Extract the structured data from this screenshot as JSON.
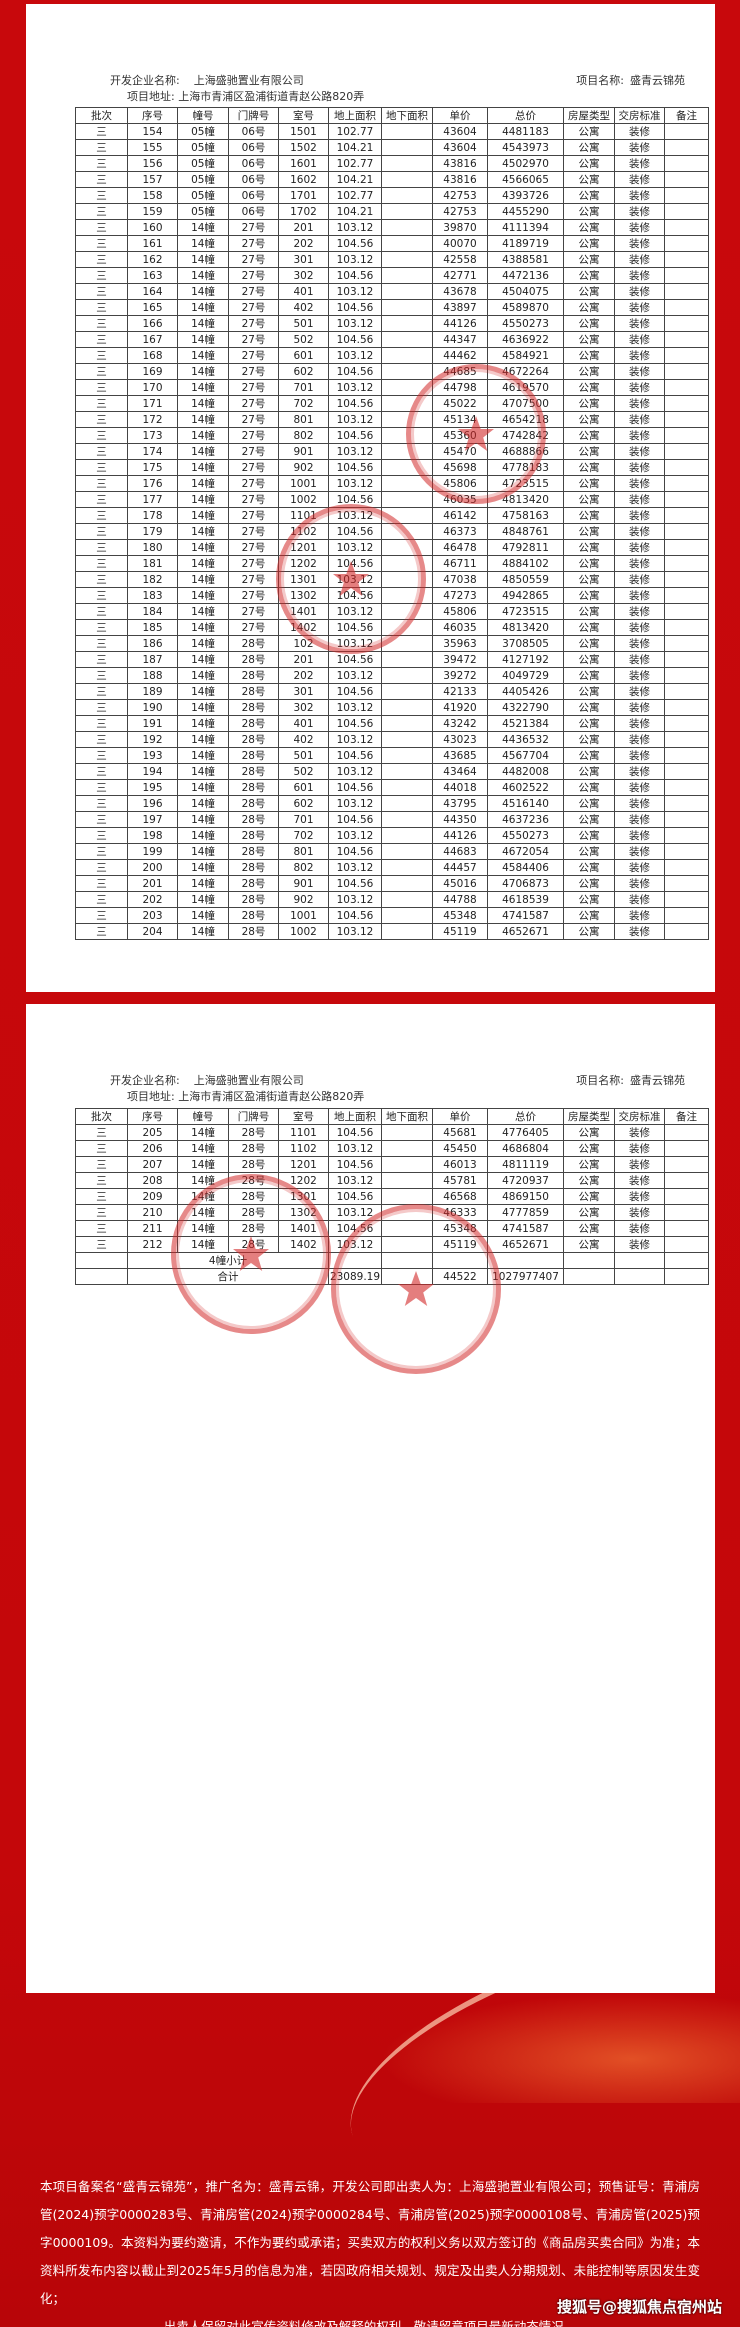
{
  "header": {
    "developer_label": "开发企业名称:",
    "developer_name": "上海盛驰置业有限公司",
    "project_label": "项目名称:",
    "project_name": "盛青云锦苑",
    "address": "项目地址: 上海市青浦区盈浦街道青赵公路820弄"
  },
  "columns": [
    "批次",
    "序号",
    "幢号",
    "门牌号",
    "室号",
    "地上面积",
    "地下面积",
    "单价",
    "总价",
    "房屋类型",
    "交房标准",
    "备注"
  ],
  "table1_rows": [
    [
      "三",
      "154",
      "05幢",
      "06号",
      "1501",
      "102.77",
      "",
      "43604",
      "4481183",
      "公寓",
      "装修",
      ""
    ],
    [
      "三",
      "155",
      "05幢",
      "06号",
      "1502",
      "104.21",
      "",
      "43604",
      "4543973",
      "公寓",
      "装修",
      ""
    ],
    [
      "三",
      "156",
      "05幢",
      "06号",
      "1601",
      "102.77",
      "",
      "43816",
      "4502970",
      "公寓",
      "装修",
      ""
    ],
    [
      "三",
      "157",
      "05幢",
      "06号",
      "1602",
      "104.21",
      "",
      "43816",
      "4566065",
      "公寓",
      "装修",
      ""
    ],
    [
      "三",
      "158",
      "05幢",
      "06号",
      "1701",
      "102.77",
      "",
      "42753",
      "4393726",
      "公寓",
      "装修",
      ""
    ],
    [
      "三",
      "159",
      "05幢",
      "06号",
      "1702",
      "104.21",
      "",
      "42753",
      "4455290",
      "公寓",
      "装修",
      ""
    ],
    [
      "三",
      "160",
      "14幢",
      "27号",
      "201",
      "103.12",
      "",
      "39870",
      "4111394",
      "公寓",
      "装修",
      ""
    ],
    [
      "三",
      "161",
      "14幢",
      "27号",
      "202",
      "104.56",
      "",
      "40070",
      "4189719",
      "公寓",
      "装修",
      ""
    ],
    [
      "三",
      "162",
      "14幢",
      "27号",
      "301",
      "103.12",
      "",
      "42558",
      "4388581",
      "公寓",
      "装修",
      ""
    ],
    [
      "三",
      "163",
      "14幢",
      "27号",
      "302",
      "104.56",
      "",
      "42771",
      "4472136",
      "公寓",
      "装修",
      ""
    ],
    [
      "三",
      "164",
      "14幢",
      "27号",
      "401",
      "103.12",
      "",
      "43678",
      "4504075",
      "公寓",
      "装修",
      ""
    ],
    [
      "三",
      "165",
      "14幢",
      "27号",
      "402",
      "104.56",
      "",
      "43897",
      "4589870",
      "公寓",
      "装修",
      ""
    ],
    [
      "三",
      "166",
      "14幢",
      "27号",
      "501",
      "103.12",
      "",
      "44126",
      "4550273",
      "公寓",
      "装修",
      ""
    ],
    [
      "三",
      "167",
      "14幢",
      "27号",
      "502",
      "104.56",
      "",
      "44347",
      "4636922",
      "公寓",
      "装修",
      ""
    ],
    [
      "三",
      "168",
      "14幢",
      "27号",
      "601",
      "103.12",
      "",
      "44462",
      "4584921",
      "公寓",
      "装修",
      ""
    ],
    [
      "三",
      "169",
      "14幢",
      "27号",
      "602",
      "104.56",
      "",
      "44685",
      "4672264",
      "公寓",
      "装修",
      ""
    ],
    [
      "三",
      "170",
      "14幢",
      "27号",
      "701",
      "103.12",
      "",
      "44798",
      "4619570",
      "公寓",
      "装修",
      ""
    ],
    [
      "三",
      "171",
      "14幢",
      "27号",
      "702",
      "104.56",
      "",
      "45022",
      "4707500",
      "公寓",
      "装修",
      ""
    ],
    [
      "三",
      "172",
      "14幢",
      "27号",
      "801",
      "103.12",
      "",
      "45134",
      "4654218",
      "公寓",
      "装修",
      ""
    ],
    [
      "三",
      "173",
      "14幢",
      "27号",
      "802",
      "104.56",
      "",
      "45360",
      "4742842",
      "公寓",
      "装修",
      ""
    ],
    [
      "三",
      "174",
      "14幢",
      "27号",
      "901",
      "103.12",
      "",
      "45470",
      "4688866",
      "公寓",
      "装修",
      ""
    ],
    [
      "三",
      "175",
      "14幢",
      "27号",
      "902",
      "104.56",
      "",
      "45698",
      "4778183",
      "公寓",
      "装修",
      ""
    ],
    [
      "三",
      "176",
      "14幢",
      "27号",
      "1001",
      "103.12",
      "",
      "45806",
      "4723515",
      "公寓",
      "装修",
      ""
    ],
    [
      "三",
      "177",
      "14幢",
      "27号",
      "1002",
      "104.56",
      "",
      "46035",
      "4813420",
      "公寓",
      "装修",
      ""
    ],
    [
      "三",
      "178",
      "14幢",
      "27号",
      "1101",
      "103.12",
      "",
      "46142",
      "4758163",
      "公寓",
      "装修",
      ""
    ],
    [
      "三",
      "179",
      "14幢",
      "27号",
      "1102",
      "104.56",
      "",
      "46373",
      "4848761",
      "公寓",
      "装修",
      ""
    ],
    [
      "三",
      "180",
      "14幢",
      "27号",
      "1201",
      "103.12",
      "",
      "46478",
      "4792811",
      "公寓",
      "装修",
      ""
    ],
    [
      "三",
      "181",
      "14幢",
      "27号",
      "1202",
      "104.56",
      "",
      "46711",
      "4884102",
      "公寓",
      "装修",
      ""
    ],
    [
      "三",
      "182",
      "14幢",
      "27号",
      "1301",
      "103.12",
      "",
      "47038",
      "4850559",
      "公寓",
      "装修",
      ""
    ],
    [
      "三",
      "183",
      "14幢",
      "27号",
      "1302",
      "104.56",
      "",
      "47273",
      "4942865",
      "公寓",
      "装修",
      ""
    ],
    [
      "三",
      "184",
      "14幢",
      "27号",
      "1401",
      "103.12",
      "",
      "45806",
      "4723515",
      "公寓",
      "装修",
      ""
    ],
    [
      "三",
      "185",
      "14幢",
      "27号",
      "1402",
      "104.56",
      "",
      "46035",
      "4813420",
      "公寓",
      "装修",
      ""
    ],
    [
      "三",
      "186",
      "14幢",
      "28号",
      "102",
      "103.12",
      "",
      "35963",
      "3708505",
      "公寓",
      "装修",
      ""
    ],
    [
      "三",
      "187",
      "14幢",
      "28号",
      "201",
      "104.56",
      "",
      "39472",
      "4127192",
      "公寓",
      "装修",
      ""
    ],
    [
      "三",
      "188",
      "14幢",
      "28号",
      "202",
      "103.12",
      "",
      "39272",
      "4049729",
      "公寓",
      "装修",
      ""
    ],
    [
      "三",
      "189",
      "14幢",
      "28号",
      "301",
      "104.56",
      "",
      "42133",
      "4405426",
      "公寓",
      "装修",
      ""
    ],
    [
      "三",
      "190",
      "14幢",
      "28号",
      "302",
      "103.12",
      "",
      "41920",
      "4322790",
      "公寓",
      "装修",
      ""
    ],
    [
      "三",
      "191",
      "14幢",
      "28号",
      "401",
      "104.56",
      "",
      "43242",
      "4521384",
      "公寓",
      "装修",
      ""
    ],
    [
      "三",
      "192",
      "14幢",
      "28号",
      "402",
      "103.12",
      "",
      "43023",
      "4436532",
      "公寓",
      "装修",
      ""
    ],
    [
      "三",
      "193",
      "14幢",
      "28号",
      "501",
      "104.56",
      "",
      "43685",
      "4567704",
      "公寓",
      "装修",
      ""
    ],
    [
      "三",
      "194",
      "14幢",
      "28号",
      "502",
      "103.12",
      "",
      "43464",
      "4482008",
      "公寓",
      "装修",
      ""
    ],
    [
      "三",
      "195",
      "14幢",
      "28号",
      "601",
      "104.56",
      "",
      "44018",
      "4602522",
      "公寓",
      "装修",
      ""
    ],
    [
      "三",
      "196",
      "14幢",
      "28号",
      "602",
      "103.12",
      "",
      "43795",
      "4516140",
      "公寓",
      "装修",
      ""
    ],
    [
      "三",
      "197",
      "14幢",
      "28号",
      "701",
      "104.56",
      "",
      "44350",
      "4637236",
      "公寓",
      "装修",
      ""
    ],
    [
      "三",
      "198",
      "14幢",
      "28号",
      "702",
      "103.12",
      "",
      "44126",
      "4550273",
      "公寓",
      "装修",
      ""
    ],
    [
      "三",
      "199",
      "14幢",
      "28号",
      "801",
      "104.56",
      "",
      "44683",
      "4672054",
      "公寓",
      "装修",
      ""
    ],
    [
      "三",
      "200",
      "14幢",
      "28号",
      "802",
      "103.12",
      "",
      "44457",
      "4584406",
      "公寓",
      "装修",
      ""
    ],
    [
      "三",
      "201",
      "14幢",
      "28号",
      "901",
      "104.56",
      "",
      "45016",
      "4706873",
      "公寓",
      "装修",
      ""
    ],
    [
      "三",
      "202",
      "14幢",
      "28号",
      "902",
      "103.12",
      "",
      "44788",
      "4618539",
      "公寓",
      "装修",
      ""
    ],
    [
      "三",
      "203",
      "14幢",
      "28号",
      "1001",
      "104.56",
      "",
      "45348",
      "4741587",
      "公寓",
      "装修",
      ""
    ],
    [
      "三",
      "204",
      "14幢",
      "28号",
      "1002",
      "103.12",
      "",
      "45119",
      "4652671",
      "公寓",
      "装修",
      ""
    ]
  ],
  "table2_rows": [
    [
      "三",
      "205",
      "14幢",
      "28号",
      "1101",
      "104.56",
      "",
      "45681",
      "4776405",
      "公寓",
      "装修",
      ""
    ],
    [
      "三",
      "206",
      "14幢",
      "28号",
      "1102",
      "103.12",
      "",
      "45450",
      "4686804",
      "公寓",
      "装修",
      ""
    ],
    [
      "三",
      "207",
      "14幢",
      "28号",
      "1201",
      "104.56",
      "",
      "46013",
      "4811119",
      "公寓",
      "装修",
      ""
    ],
    [
      "三",
      "208",
      "14幢",
      "28号",
      "1202",
      "103.12",
      "",
      "45781",
      "4720937",
      "公寓",
      "装修",
      ""
    ],
    [
      "三",
      "209",
      "14幢",
      "28号",
      "1301",
      "104.56",
      "",
      "46568",
      "4869150",
      "公寓",
      "装修",
      ""
    ],
    [
      "三",
      "210",
      "14幢",
      "28号",
      "1302",
      "103.12",
      "",
      "46333",
      "4777859",
      "公寓",
      "装修",
      ""
    ],
    [
      "三",
      "211",
      "14幢",
      "28号",
      "1401",
      "104.56",
      "",
      "45348",
      "4741587",
      "公寓",
      "装修",
      ""
    ],
    [
      "三",
      "212",
      "14幢",
      "28号",
      "1402",
      "103.12",
      "",
      "45119",
      "4652671",
      "公寓",
      "装修",
      ""
    ]
  ],
  "subtotal_label": "4幢小计",
  "total": {
    "label": "合计",
    "area": "23089.19",
    "unit_price": "44522",
    "total_price": "1027977407"
  },
  "disclaimer": {
    "body": "本项目备案名“盛青云锦苑”，推广名为：盛青云锦，开发公司即出卖人为：上海盛驰置业有限公司；预售证号：青浦房管(2024)预字0000283号、青浦房管(2024)预字0000284号、青浦房管(2025)预字0000108号、青浦房管(2025)预字0000109。本资料为要约邀请，不作为要约或承诺；买卖双方的权利义务以双方签订的《商品房买卖合同》为准；本资料所发布内容以截止到2025年5月的信息为准，若因政府相关规划、规定及出卖人分期规划、未能控制等原因发生变化；",
    "last_line": "出卖人保留对此宣传资料修改及解释的权利，敬请留意项目最新动态情况。"
  },
  "watermark": "搜狐号@搜狐焦点宿州站",
  "colors": {
    "background_red": "#c8080c",
    "stamp_red": "#d22828"
  }
}
